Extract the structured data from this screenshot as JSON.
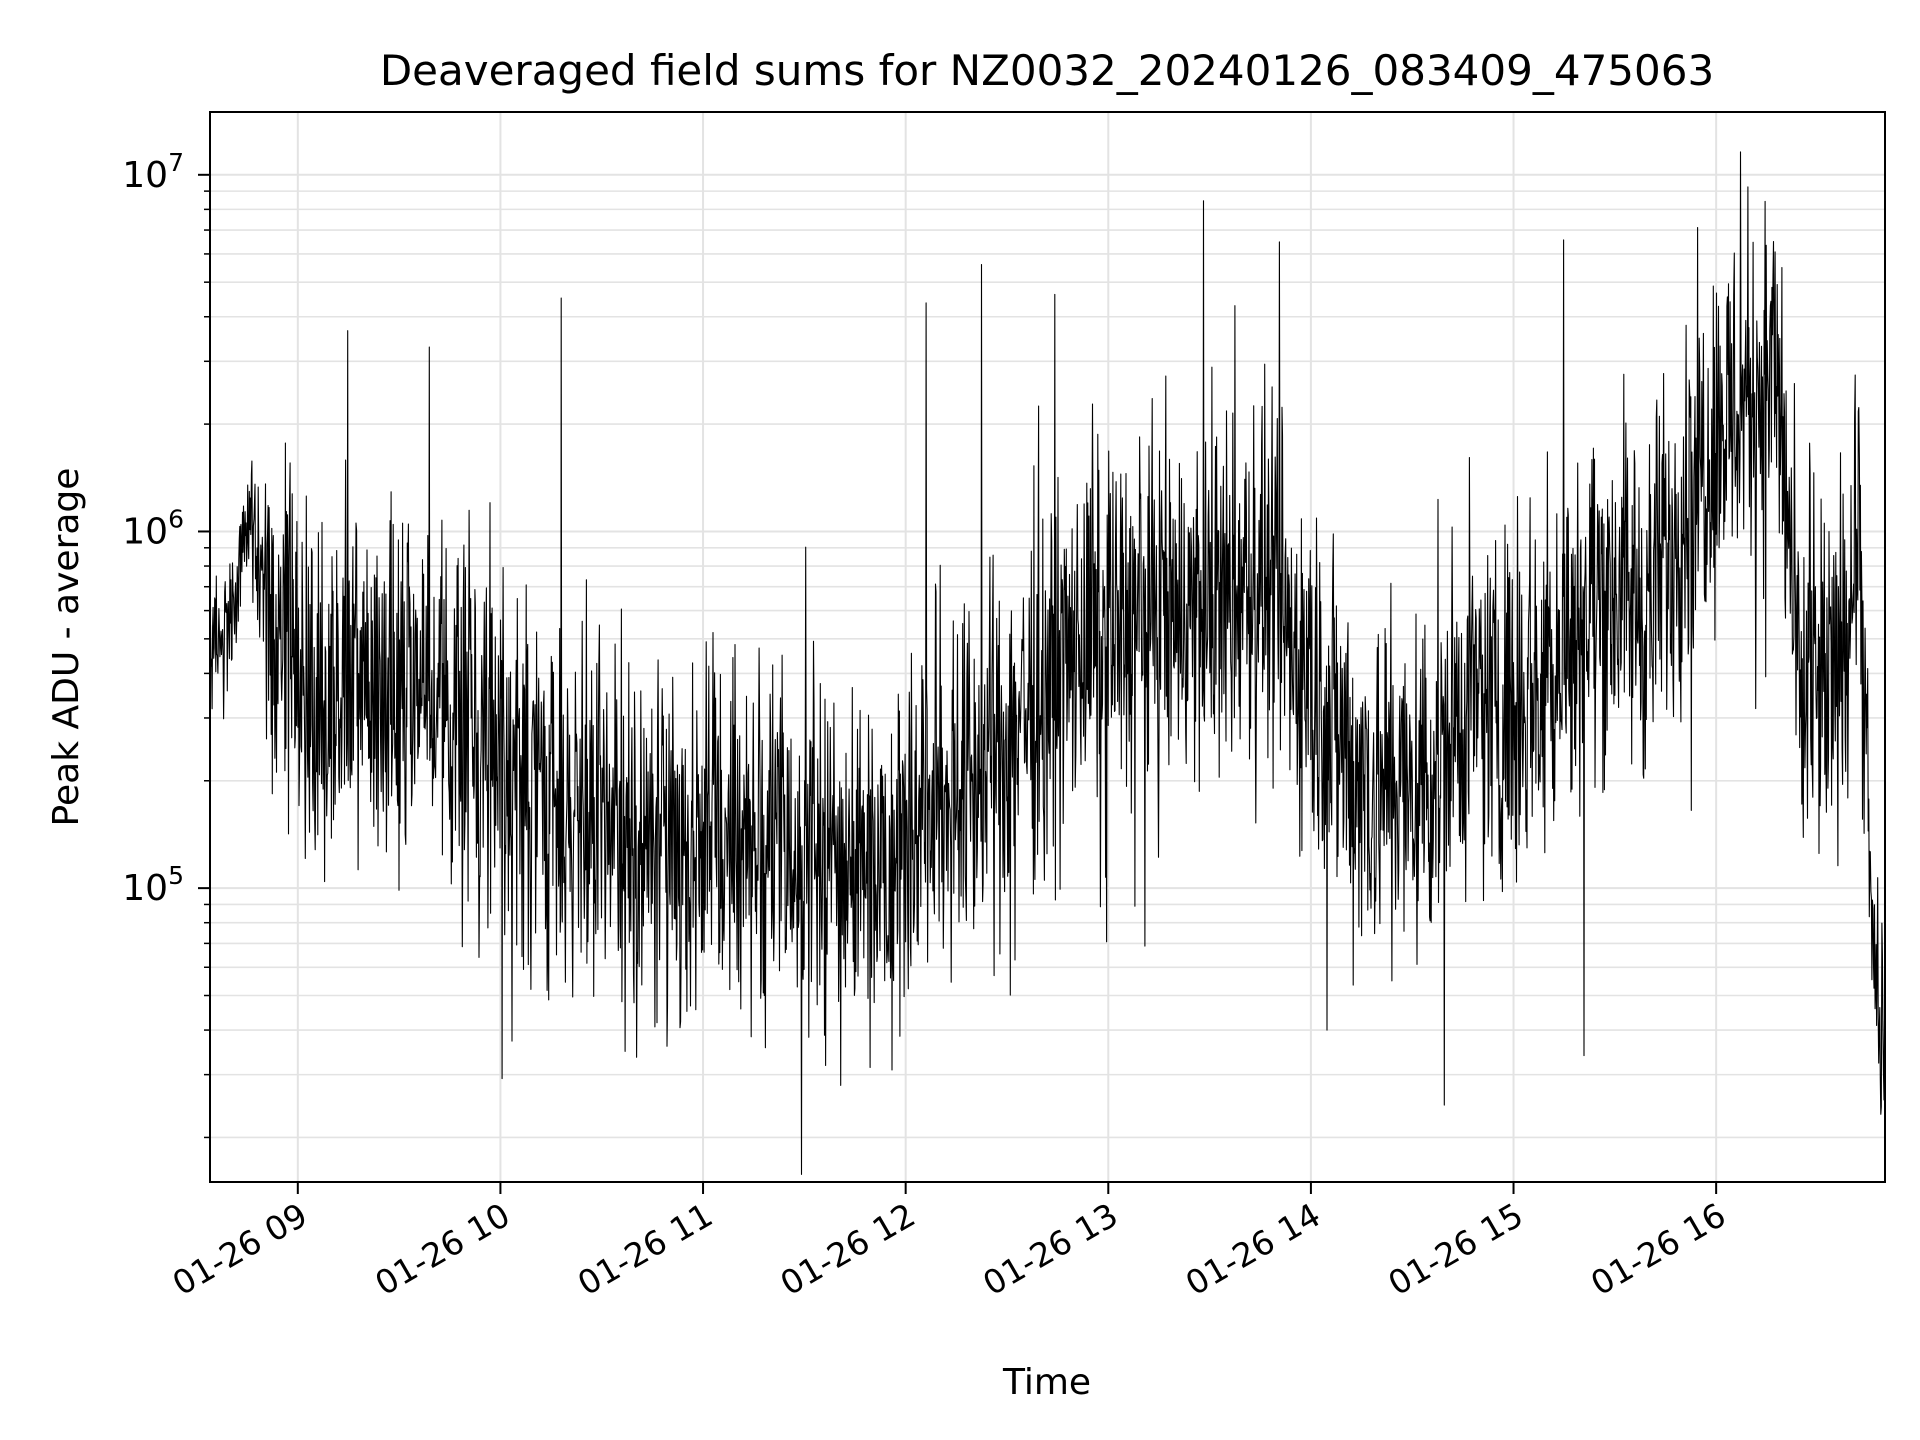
{
  "chart_data": {
    "type": "line",
    "title": "Deaveraged field sums for NZ0032_20240126_083409_475063",
    "xlabel": "Time",
    "ylabel": "Peak ADU - average",
    "xlim": [
      "2024-01-26 08:34",
      "2024-01-26 16:50"
    ],
    "ylim": [
      15000,
      15000000
    ],
    "yscale": "log",
    "grid": true,
    "x_ticks": [
      "2024-01-26 09:00",
      "2024-01-26 10:00",
      "2024-01-26 11:00",
      "2024-01-26 12:00",
      "2024-01-26 13:00",
      "2024-01-26 14:00",
      "2024-01-26 15:00",
      "2024-01-26 16:00"
    ],
    "x_tick_labels": [
      "01-26 09",
      "01-26 10",
      "01-26 11",
      "01-26 12",
      "01-26 13",
      "01-26 14",
      "01-26 15",
      "01-26 16"
    ],
    "y_ticks": [
      {
        "value": 100000,
        "base": "10",
        "exp": "5"
      },
      {
        "value": 1000000,
        "base": "10",
        "exp": "6"
      },
      {
        "value": 10000000,
        "base": "10",
        "exp": "7"
      }
    ],
    "line_color": "#000000",
    "series": [
      {
        "x": [
          "2024-01-26 08:34",
          "2024-01-26 08:40",
          "2024-01-26 08:46",
          "2024-01-26 08:50",
          "2024-01-26 08:54",
          "2024-01-26 08:58",
          "2024-01-26 09:05",
          "2024-01-26 09:15",
          "2024-01-26 09:25",
          "2024-01-26 09:35",
          "2024-01-26 09:45",
          "2024-01-26 09:55",
          "2024-01-26 10:10",
          "2024-01-26 10:25",
          "2024-01-26 10:40",
          "2024-01-26 10:55",
          "2024-01-26 11:10",
          "2024-01-26 11:25",
          "2024-01-26 11:40",
          "2024-01-26 11:55",
          "2024-01-26 12:10",
          "2024-01-26 12:25",
          "2024-01-26 12:35",
          "2024-01-26 12:45",
          "2024-01-26 13:00",
          "2024-01-26 13:15",
          "2024-01-26 13:30",
          "2024-01-26 13:45",
          "2024-01-26 14:00",
          "2024-01-26 14:15",
          "2024-01-26 14:30",
          "2024-01-26 14:45",
          "2024-01-26 15:00",
          "2024-01-26 15:10",
          "2024-01-26 15:20",
          "2024-01-26 15:30",
          "2024-01-26 15:40",
          "2024-01-26 15:50",
          "2024-01-26 16:00",
          "2024-01-26 16:10",
          "2024-01-26 16:18",
          "2024-01-26 16:25",
          "2024-01-26 16:35",
          "2024-01-26 16:42",
          "2024-01-26 16:44",
          "2024-01-26 16:47",
          "2024-01-26 16:50"
        ],
        "y": [
          450000,
          520000,
          1200000,
          700000,
          500000,
          450000,
          350000,
          350000,
          350000,
          350000,
          330000,
          300000,
          180000,
          150000,
          140000,
          140000,
          150000,
          130000,
          120000,
          130000,
          190000,
          220000,
          320000,
          400000,
          550000,
          600000,
          600000,
          750000,
          380000,
          200000,
          180000,
          300000,
          350000,
          400000,
          600000,
          700000,
          600000,
          1200000,
          2000000,
          2500000,
          2800000,
          320000,
          350000,
          1000000,
          300000,
          50000,
          35000
        ]
      }
    ]
  }
}
